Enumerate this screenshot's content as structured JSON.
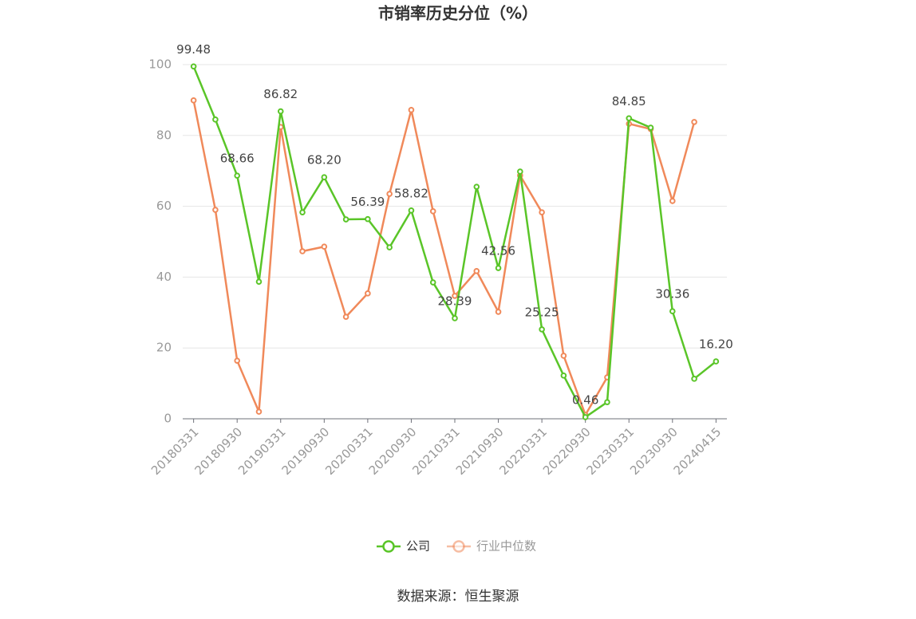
{
  "chart_data": {
    "type": "line",
    "title": "市销率历史分位（%）",
    "source": "数据来源：恒生聚源",
    "categories": [
      "20180331",
      null,
      "20180930",
      null,
      "20190331",
      null,
      "20190930",
      null,
      "20200331",
      null,
      "20200930",
      null,
      "20210331",
      null,
      "20210930",
      null,
      "20220331",
      null,
      "20220930",
      null,
      "20230331",
      null,
      "20230930",
      null,
      "20240415"
    ],
    "series": [
      {
        "name": "公司",
        "color": "#5ac528",
        "values": [
          99.48,
          84.5,
          68.66,
          38.7,
          86.82,
          58.3,
          68.2,
          56.3,
          56.39,
          48.4,
          58.82,
          38.5,
          28.39,
          65.5,
          42.56,
          69.8,
          25.25,
          12.2,
          0.46,
          4.7,
          84.85,
          82.2,
          30.36,
          11.3,
          16.2
        ],
        "value_labels": [
          "99.48",
          null,
          "68.66",
          null,
          "86.82",
          null,
          "68.20",
          null,
          "56.39",
          null,
          "58.82",
          null,
          "28.39",
          null,
          "42.56",
          null,
          "25.25",
          null,
          "0.46",
          null,
          "84.85",
          null,
          "30.36",
          null,
          "16.20"
        ]
      },
      {
        "name": "行业中位数",
        "color": "#f0895a",
        "values": [
          89.9,
          59.0,
          16.4,
          2.0,
          82.4,
          47.3,
          48.6,
          28.8,
          35.4,
          63.5,
          87.2,
          58.6,
          34.7,
          41.7,
          30.2,
          68.7,
          58.3,
          17.8,
          1.1,
          11.7,
          83.3,
          81.8,
          61.5,
          83.8,
          null
        ]
      }
    ],
    "ylim": [
      0,
      100
    ],
    "yticks": [
      0,
      20,
      40,
      60,
      80,
      100
    ],
    "grid": true
  }
}
